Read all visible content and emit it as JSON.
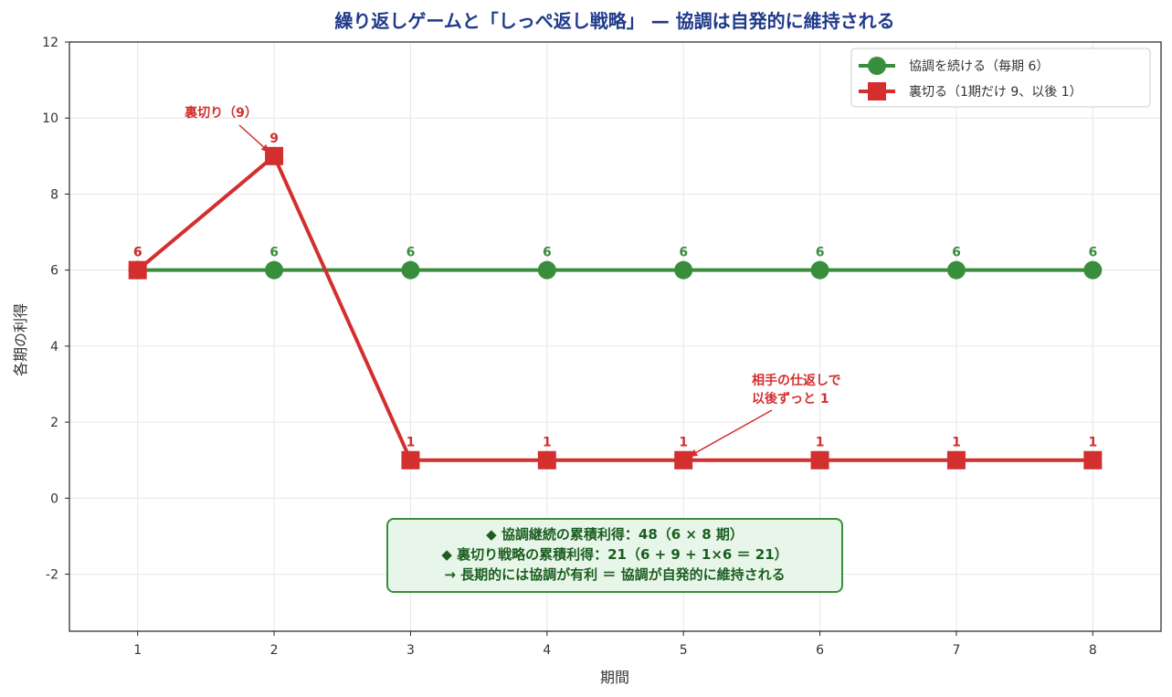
{
  "chart_data": {
    "type": "line",
    "title": "繰り返しゲームと「しっぺ返し戦略」 — 協調は自発的に維持される",
    "xlabel": "期間",
    "ylabel": "各期の利得",
    "x": [
      1,
      2,
      3,
      4,
      5,
      6,
      7,
      8
    ],
    "xlim": [
      0.5,
      8.5
    ],
    "ylim": [
      -3.5,
      12
    ],
    "yticks": [
      -2,
      0,
      2,
      4,
      6,
      8,
      10,
      12
    ],
    "grid": true,
    "legend_position": "top-right",
    "series": [
      {
        "name": "協調を続ける（毎期 6）",
        "values": [
          6,
          6,
          6,
          6,
          6,
          6,
          6,
          6
        ],
        "color": "#388e3c",
        "marker": "circle"
      },
      {
        "name": "裏切る（1期だけ 9、以後 1）",
        "values": [
          6,
          9,
          1,
          1,
          1,
          1,
          1,
          1
        ],
        "color": "#d32f2f",
        "marker": "square"
      }
    ],
    "annotations": [
      {
        "lines": [
          "裏切り（9）"
        ],
        "target": [
          2,
          9
        ],
        "color": "#d32f2f"
      },
      {
        "lines": [
          "相手の仕返しで",
          "以後ずっと 1"
        ],
        "target": [
          5,
          1
        ],
        "color": "#d32f2f"
      }
    ],
    "summary_box": {
      "lines": [
        "◆ 協調継続の累積利得：48（6 × 8 期）",
        "◆ 裏切り戦略の累積利得：21（6 + 9 + 1×6 ＝ 21）",
        "→ 長期的には協調が有利 ＝ 協調が自発的に維持される"
      ],
      "text_color": "#1b5e20",
      "background": "#e8f5e9",
      "border_color": "#388e3c"
    },
    "title_color": "#1f3a8a"
  }
}
